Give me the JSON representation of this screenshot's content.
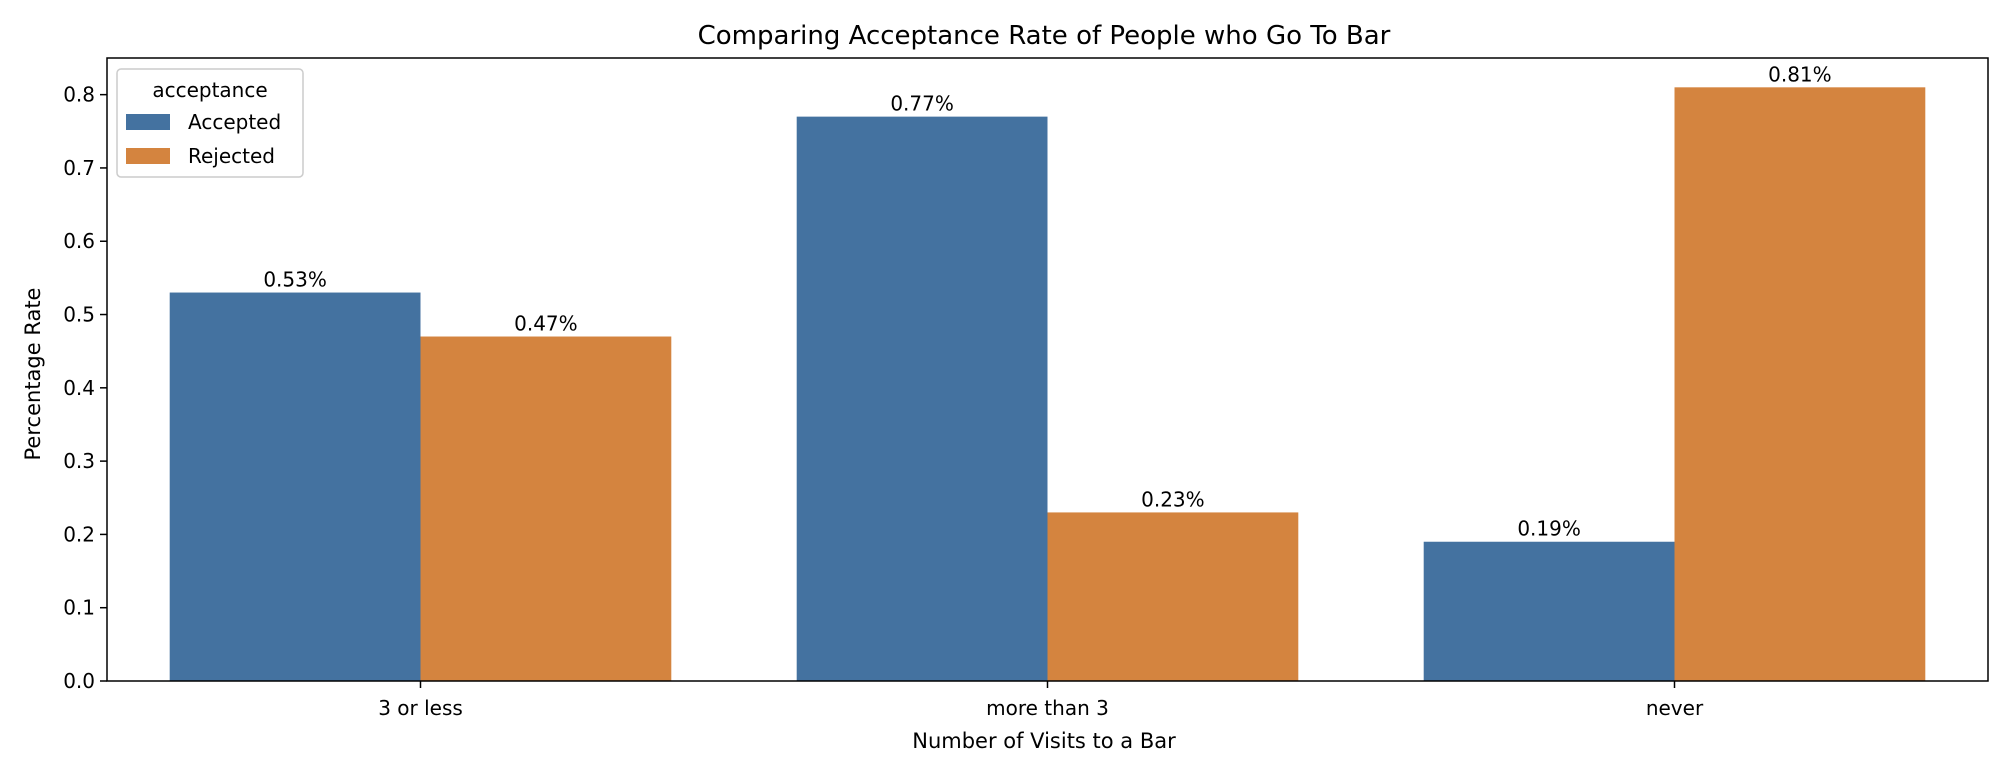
{
  "chart_data": {
    "type": "bar",
    "title": "Comparing Acceptance Rate of People who Go To Bar",
    "xlabel": "Number of Visits to a Bar",
    "ylabel": "Percentage Rate",
    "categories": [
      "3 or less",
      "more than 3",
      "never"
    ],
    "series": [
      {
        "name": "Accepted",
        "color": "#4472a0",
        "values": [
          0.53,
          0.77,
          0.19
        ],
        "labels": [
          "0.53%",
          "0.77%",
          "0.19%"
        ]
      },
      {
        "name": "Rejected",
        "color": "#d4843f",
        "values": [
          0.47,
          0.23,
          0.81
        ],
        "labels": [
          "0.47%",
          "0.23%",
          "0.81%"
        ]
      }
    ],
    "ylim": [
      0,
      0.85
    ],
    "yticks": [
      0.0,
      0.1,
      0.2,
      0.3,
      0.4,
      0.5,
      0.6,
      0.7,
      0.8
    ],
    "ytick_labels": [
      "0.0",
      "0.1",
      "0.2",
      "0.3",
      "0.4",
      "0.5",
      "0.6",
      "0.7",
      "0.8"
    ],
    "grid": false,
    "legend": {
      "title": "acceptance",
      "placement": "top-left"
    }
  }
}
